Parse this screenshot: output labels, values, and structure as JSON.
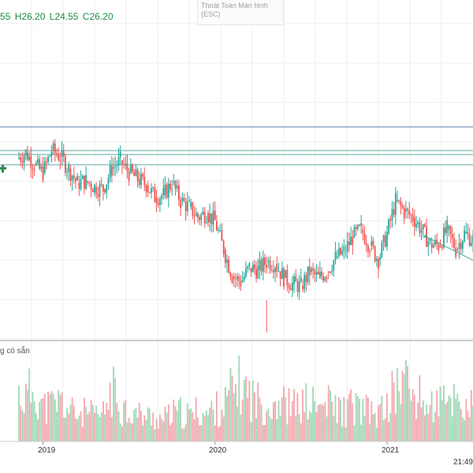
{
  "ohlc": {
    "open_partial": "55",
    "high": "H26.20",
    "low": "L24.55",
    "close": "C26.20"
  },
  "tooltip": {
    "line1": "Thoát Toàn Màn hình",
    "line2": "(ESC)"
  },
  "volume_label": "g có sẵn",
  "time_label": "21:49",
  "colors": {
    "up": "#26a69a",
    "down": "#ef5350",
    "up_vol": "#9fd8b5",
    "down_vol": "#f4a6ad",
    "hline_blue": "#5b7fa8",
    "hline_teal": "#5fa7a0",
    "grid": "#eeeeee"
  },
  "chart_data": {
    "type": "candlestick",
    "x_tick_labels": [
      "2019",
      "2020",
      "2021"
    ],
    "series": [
      {
        "x": [
          2018.85,
          2018.9,
          2018.95,
          2019.0,
          2019.05,
          2019.1,
          2019.15,
          2019.2,
          2019.25,
          2019.3,
          2019.35,
          2019.4,
          2019.45,
          2019.5,
          2019.55,
          2019.6,
          2019.65,
          2019.7,
          2019.75,
          2019.8,
          2019.85,
          2019.9,
          2019.95,
          2020.0,
          2020.05,
          2020.1,
          2020.15,
          2020.2,
          2020.25,
          2020.3,
          2020.35,
          2020.4,
          2020.45,
          2020.5,
          2020.55,
          2020.6,
          2020.65,
          2020.7,
          2020.75,
          2020.8,
          2020.85,
          2020.9,
          2020.95,
          2021.0,
          2021.05,
          2021.1,
          2021.15,
          2021.2,
          2021.25,
          2021.3,
          2021.35,
          2021.4,
          2021.45,
          2021.5
        ],
        "close": [
          31.5,
          31.8,
          31.2,
          30.8,
          31.9,
          31.6,
          31.0,
          30.3,
          30.4,
          30.1,
          30.0,
          31.0,
          31.4,
          30.8,
          30.5,
          30.2,
          29.6,
          29.7,
          30.3,
          29.4,
          29.1,
          28.6,
          28.8,
          28.4,
          27.0,
          25.7,
          25.4,
          26.1,
          26.0,
          26.4,
          26.3,
          25.6,
          25.3,
          25.2,
          25.9,
          25.6,
          25.9,
          26.6,
          26.9,
          27.6,
          28.0,
          27.2,
          26.5,
          27.8,
          29.4,
          28.9,
          28.6,
          28.0,
          27.3,
          27.2,
          28.0,
          27.0,
          27.8,
          27.5
        ]
      }
    ],
    "volume": [
      55,
      48,
      62,
      38,
      40,
      45,
      35,
      30,
      32,
      28,
      30,
      58,
      40,
      35,
      30,
      28,
      26,
      25,
      30,
      32,
      28,
      34,
      30,
      36,
      38,
      58,
      62,
      52,
      44,
      40,
      46,
      42,
      38,
      40,
      44,
      36,
      42,
      38,
      34,
      40,
      36,
      32,
      30,
      40,
      58,
      70,
      52,
      46,
      38,
      44,
      40,
      52,
      36,
      40
    ]
  }
}
